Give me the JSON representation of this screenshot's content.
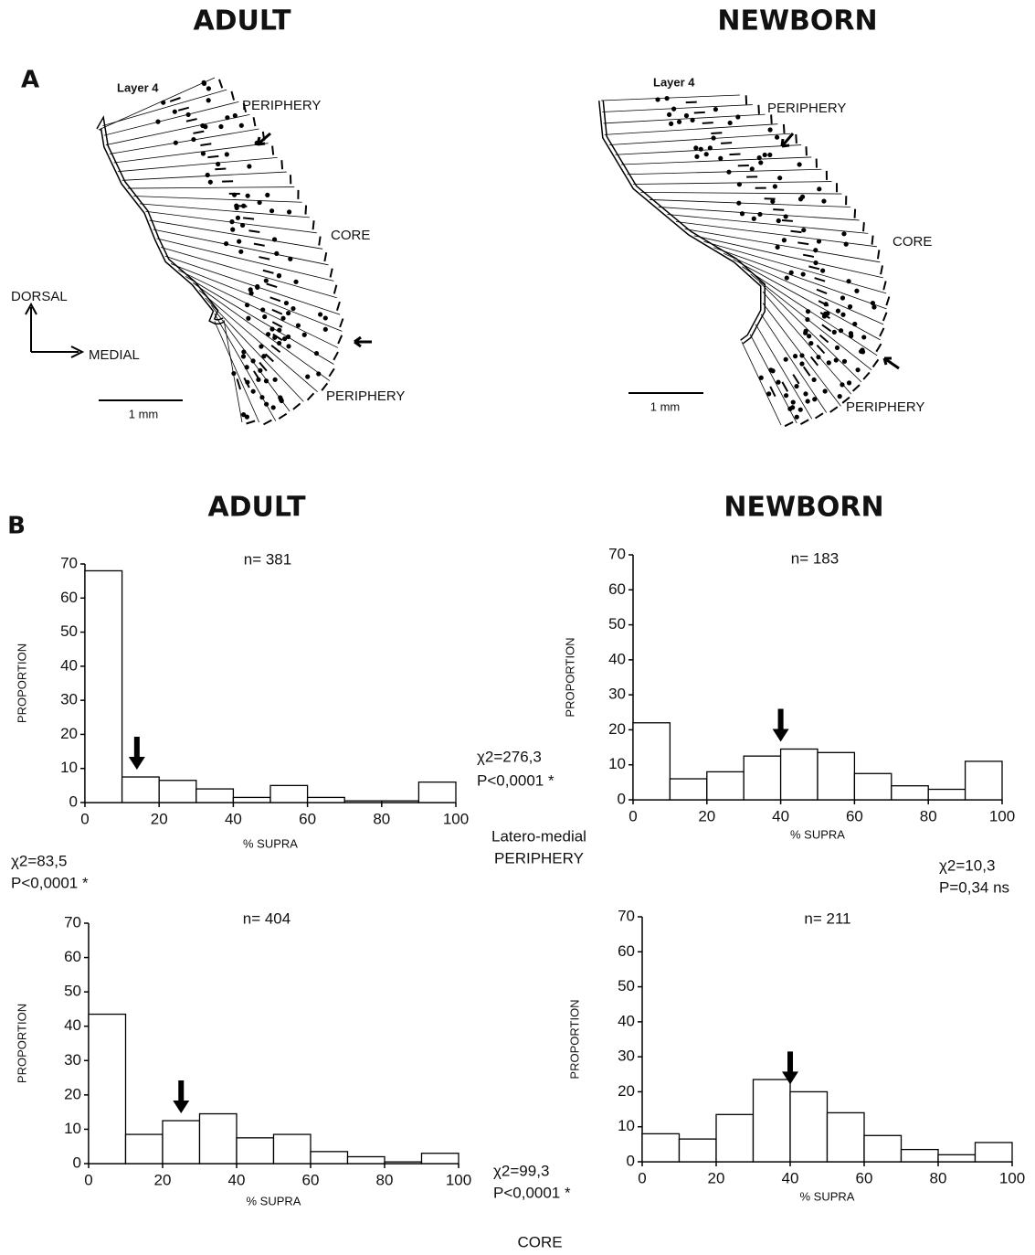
{
  "titles": {
    "adult_a": "ADULT",
    "newborn_a": "NEWBORN",
    "adult_b": "ADULT",
    "newborn_b": "NEWBORN"
  },
  "panel_labels": [
    "A",
    "B"
  ],
  "panel_a": {
    "adult": {
      "layer": "Layer 4",
      "periphery_top": "PERIPHERY",
      "core": "CORE",
      "periphery_bottom": "PERIPHERY",
      "scale": "1 mm"
    },
    "newborn": {
      "layer": "Layer 4",
      "periphery_top": "PERIPHERY",
      "core": "CORE",
      "periphery_bottom": "PERIPHERY",
      "scale": "1 mm"
    },
    "axes": {
      "dorsal": "DORSAL",
      "medial": "MEDIAL"
    }
  },
  "chart_data": [
    {
      "type": "histogram",
      "title": "n= 381",
      "x_label": "% SUPRA",
      "y_label": "PROPORTION",
      "bins": [
        0,
        10,
        20,
        30,
        40,
        50,
        60,
        70,
        80,
        90,
        100
      ],
      "values": [
        68,
        7.5,
        6.5,
        4,
        1.5,
        5,
        1.5,
        0.5,
        0.5,
        6
      ],
      "xlim": [
        0,
        100
      ],
      "ylim": [
        0,
        70
      ],
      "xticks": [
        0,
        20,
        40,
        60,
        80,
        100
      ],
      "yticks": [
        0,
        10,
        20,
        30,
        40,
        50,
        60,
        70
      ],
      "arrow": 14
    },
    {
      "type": "histogram",
      "title": "n= 183",
      "x_label": "% SUPRA",
      "y_label": "PROPORTION",
      "bins": [
        0,
        10,
        20,
        30,
        40,
        50,
        60,
        70,
        80,
        90,
        100
      ],
      "values": [
        22,
        6,
        8,
        12.5,
        14.5,
        13.5,
        7.5,
        4,
        3,
        11
      ],
      "xlim": [
        0,
        100
      ],
      "ylim": [
        0,
        70
      ],
      "xticks": [
        0,
        20,
        40,
        60,
        80,
        100
      ],
      "yticks": [
        0,
        10,
        20,
        30,
        40,
        50,
        60,
        70
      ],
      "arrow": 40
    },
    {
      "type": "histogram",
      "title": "n= 404",
      "x_label": "% SUPRA",
      "y_label": "PROPORTION",
      "bins": [
        0,
        10,
        20,
        30,
        40,
        50,
        60,
        70,
        80,
        90,
        100
      ],
      "values": [
        43.5,
        8.5,
        12.5,
        14.5,
        7.5,
        8.5,
        3.5,
        2,
        0.5,
        3
      ],
      "xlim": [
        0,
        100
      ],
      "ylim": [
        0,
        70
      ],
      "xticks": [
        0,
        20,
        40,
        60,
        80,
        100
      ],
      "yticks": [
        0,
        10,
        20,
        30,
        40,
        50,
        60,
        70
      ],
      "arrow": 25
    },
    {
      "type": "histogram",
      "title": "n= 211",
      "x_label": "% SUPRA",
      "y_label": "PROPORTION",
      "bins": [
        0,
        10,
        20,
        30,
        40,
        50,
        60,
        70,
        80,
        90,
        100
      ],
      "values": [
        8,
        6.5,
        13.5,
        23.5,
        20,
        14,
        7.5,
        3.5,
        2,
        5.5
      ],
      "xlim": [
        0,
        100
      ],
      "ylim": [
        0,
        70
      ],
      "xticks": [
        0,
        20,
        40,
        60,
        80,
        100
      ],
      "yticks": [
        0,
        10,
        20,
        30,
        40,
        50,
        60,
        70
      ],
      "arrow": 40
    }
  ],
  "annotations": [
    [
      "χ2=276,3",
      "P<0,0001 *"
    ],
    [
      "χ2=83,5",
      "P<0,0001 *"
    ],
    [
      "χ2=10,3",
      "P=0,34 ns"
    ],
    [
      "χ2=99,3",
      "P<0,0001 *"
    ]
  ],
  "row_labels": {
    "periphery": [
      "Latero-medial",
      "PERIPHERY"
    ],
    "core": "CORE"
  }
}
